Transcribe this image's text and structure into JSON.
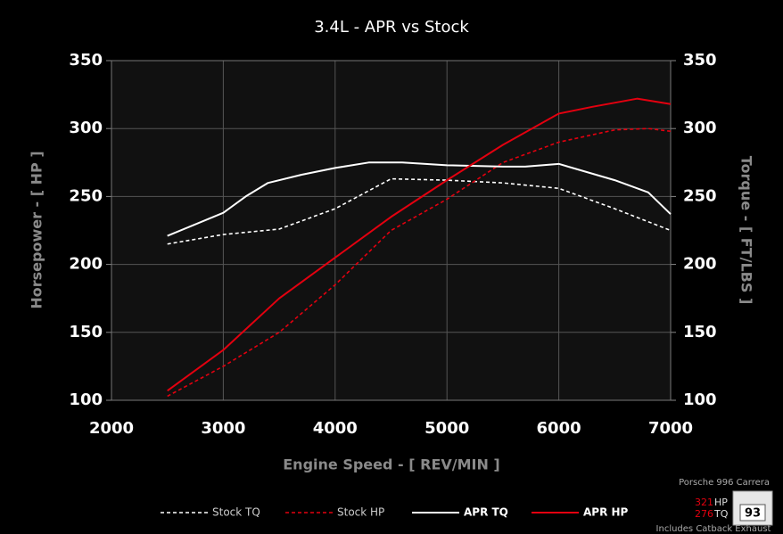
{
  "chart_data": {
    "type": "line",
    "title": "3.4L - APR vs Stock",
    "x_label": "Engine Speed - [ REV/MIN ]",
    "y_label": "Horsepower - [ HP ]",
    "y2_label": "Torque - [ FT/LBS ]",
    "xlim": [
      2000,
      7000
    ],
    "xticks": [
      2000,
      3000,
      4000,
      5000,
      6000,
      7000
    ],
    "ylim": [
      100,
      350
    ],
    "yticks": [
      100,
      150,
      200,
      250,
      300,
      350
    ],
    "y2lim": [
      100,
      350
    ],
    "y2ticks": [
      100,
      150,
      200,
      250,
      300,
      350
    ],
    "grid": true,
    "legend": "bottom",
    "series": [
      {
        "name": "Stock TQ",
        "color": "#ffffff",
        "dashed": true,
        "axis": "y2",
        "x": [
          2500,
          3000,
          3500,
          4000,
          4500,
          5000,
          5500,
          6000,
          6500,
          7000
        ],
        "values": [
          215,
          222,
          226,
          241,
          263,
          262,
          260,
          256,
          241,
          225
        ]
      },
      {
        "name": "Stock HP",
        "color": "#e3000f",
        "dashed": true,
        "x": [
          2500,
          3000,
          3500,
          4000,
          4500,
          5000,
          5500,
          6000,
          6500,
          6800,
          7000
        ],
        "values": [
          103,
          125,
          150,
          185,
          225,
          248,
          275,
          290,
          299,
          300,
          298
        ]
      },
      {
        "name": "APR TQ",
        "color": "#ffffff",
        "dashed": false,
        "axis": "y2",
        "x": [
          2500,
          3000,
          3200,
          3400,
          3700,
          4000,
          4300,
          4600,
          5000,
          5500,
          5700,
          6000,
          6500,
          6800,
          7000
        ],
        "values": [
          221,
          238,
          250,
          260,
          266,
          271,
          275,
          275,
          273,
          272,
          272,
          274,
          262,
          253,
          237
        ]
      },
      {
        "name": "APR HP",
        "color": "#e3000f",
        "dashed": false,
        "x": [
          2500,
          3000,
          3500,
          4000,
          4500,
          5000,
          5500,
          6000,
          6300,
          6700,
          7000
        ],
        "values": [
          107,
          137,
          175,
          205,
          235,
          262,
          288,
          311,
          316,
          322,
          318
        ]
      }
    ],
    "annotations": [
      "Porsche 996 Carrera",
      "321",
      "HP",
      "276",
      "TQ",
      "93",
      "Includes Catback Exhaust"
    ]
  }
}
